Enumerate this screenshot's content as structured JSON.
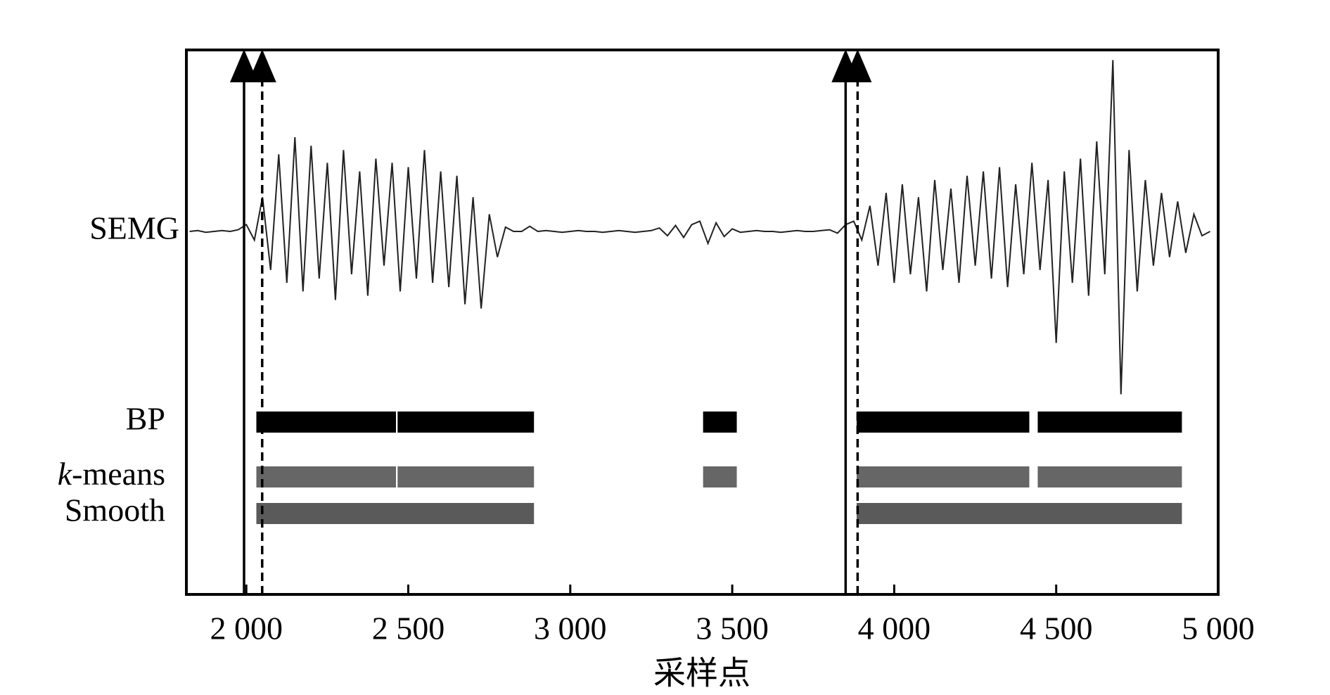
{
  "chart_data": {
    "type": "timeline",
    "xlabel": "采样点",
    "xlim": [
      1815,
      5000
    ],
    "xticks": [
      {
        "value": 2000,
        "label": "2 000"
      },
      {
        "value": 2500,
        "label": "2 500"
      },
      {
        "value": 3000,
        "label": "3 000"
      },
      {
        "value": 3500,
        "label": "3 500"
      },
      {
        "value": 4000,
        "label": "4 000"
      },
      {
        "value": 4500,
        "label": "4 500"
      },
      {
        "value": 5000,
        "label": "5 000"
      }
    ],
    "signal": {
      "name": "SEMG",
      "color": "#222",
      "ylim": [
        -220,
        220
      ],
      "x": [
        1825,
        1850,
        1875,
        1900,
        1925,
        1950,
        1975,
        2000,
        2025,
        2050,
        2075,
        2100,
        2125,
        2150,
        2175,
        2200,
        2225,
        2250,
        2275,
        2300,
        2325,
        2350,
        2375,
        2400,
        2425,
        2450,
        2475,
        2500,
        2525,
        2550,
        2575,
        2600,
        2625,
        2650,
        2675,
        2700,
        2725,
        2750,
        2775,
        2800,
        2825,
        2850,
        2875,
        2900,
        2925,
        2950,
        2975,
        3000,
        3025,
        3050,
        3075,
        3100,
        3125,
        3150,
        3175,
        3200,
        3225,
        3250,
        3275,
        3300,
        3325,
        3350,
        3375,
        3400,
        3425,
        3450,
        3475,
        3500,
        3525,
        3550,
        3575,
        3600,
        3625,
        3650,
        3675,
        3700,
        3725,
        3750,
        3775,
        3800,
        3825,
        3850,
        3875,
        3900,
        3925,
        3950,
        3975,
        4000,
        4025,
        4050,
        4075,
        4100,
        4125,
        4150,
        4175,
        4200,
        4225,
        4250,
        4275,
        4300,
        4325,
        4350,
        4375,
        4400,
        4425,
        4450,
        4475,
        4500,
        4525,
        4550,
        4575,
        4600,
        4625,
        4650,
        4675,
        4700,
        4725,
        4750,
        4775,
        4800,
        4825,
        4850,
        4875,
        4900,
        4925,
        4950,
        4975
      ],
      "values": [
        0,
        1,
        -1,
        0,
        1,
        0,
        2,
        8,
        -10,
        40,
        -45,
        90,
        -60,
        110,
        -70,
        100,
        -55,
        80,
        -80,
        95,
        -50,
        70,
        -75,
        85,
        -40,
        80,
        -70,
        75,
        -55,
        95,
        -60,
        70,
        -65,
        65,
        -85,
        40,
        -90,
        20,
        -30,
        5,
        0,
        0,
        6,
        0,
        1,
        0,
        -1,
        0,
        1,
        0,
        0,
        -1,
        0,
        1,
        0,
        -1,
        0,
        1,
        4,
        -5,
        7,
        -7,
        8,
        12,
        -14,
        10,
        -6,
        3,
        -1,
        0,
        1,
        0,
        0,
        -1,
        0,
        1,
        0,
        0,
        1,
        2,
        -2,
        8,
        12,
        -10,
        30,
        -40,
        45,
        -60,
        55,
        -50,
        40,
        -70,
        60,
        -45,
        50,
        -60,
        65,
        -40,
        70,
        -55,
        75,
        -65,
        55,
        -50,
        80,
        -45,
        60,
        -130,
        70,
        -60,
        85,
        -75,
        105,
        -50,
        200,
        -190,
        95,
        -70,
        60,
        -40,
        45,
        -30,
        35,
        -25,
        20,
        -5,
        0
      ]
    },
    "rows": [
      {
        "name": "BP",
        "color": "#000000",
        "segments": [
          [
            2031,
            2462
          ],
          [
            2467,
            2888
          ],
          [
            3410,
            3514
          ],
          [
            3884,
            4417
          ],
          [
            4443,
            4888
          ]
        ]
      },
      {
        "name": "k-means",
        "color": "#666666",
        "segments": [
          [
            2031,
            2462
          ],
          [
            2467,
            2888
          ],
          [
            3410,
            3514
          ],
          [
            3884,
            4417
          ],
          [
            4443,
            4888
          ]
        ]
      },
      {
        "name": "Smooth",
        "color": "#5a5a5a",
        "segments": [
          [
            2031,
            2888
          ],
          [
            3884,
            4888
          ]
        ]
      }
    ],
    "markers": [
      {
        "x": 1993,
        "style": "solid"
      },
      {
        "x": 2049,
        "style": "dashed"
      },
      {
        "x": 3850,
        "style": "solid"
      },
      {
        "x": 3887,
        "style": "dashed"
      }
    ]
  }
}
